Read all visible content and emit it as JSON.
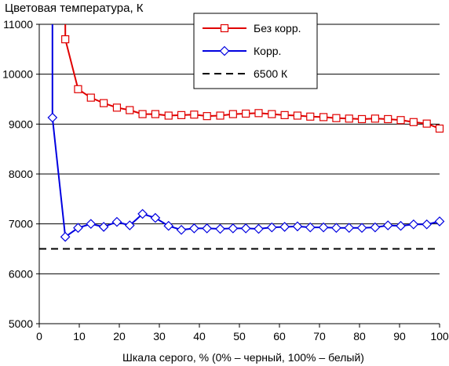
{
  "chart_data": {
    "type": "line",
    "title": "Цветовая температура, К",
    "xlabel": "Шкала серого, % (0% – черный, 100% – белый)",
    "ylabel": "",
    "xlim": [
      0,
      100
    ],
    "ylim": [
      5000,
      11000
    ],
    "x_ticks": [
      "0",
      "10",
      "20",
      "30",
      "40",
      "50",
      "60",
      "70",
      "80",
      "90",
      "100"
    ],
    "y_ticks": [
      "5000",
      "6000",
      "7000",
      "8000",
      "9000",
      "10000",
      "11000"
    ],
    "grid": "horizontal",
    "legend_position": "top-right",
    "series": [
      {
        "name": "Без корр.",
        "color": "#e00000",
        "marker": "square",
        "line_start": [
          6.5,
          11500
        ],
        "points": [
          [
            6.5,
            10700
          ],
          [
            9.7,
            9700
          ],
          [
            12.9,
            9530
          ],
          [
            16.1,
            9420
          ],
          [
            19.4,
            9330
          ],
          [
            22.6,
            9280
          ],
          [
            25.8,
            9200
          ],
          [
            29.0,
            9200
          ],
          [
            32.3,
            9170
          ],
          [
            35.5,
            9180
          ],
          [
            38.7,
            9190
          ],
          [
            41.9,
            9160
          ],
          [
            45.2,
            9170
          ],
          [
            48.4,
            9200
          ],
          [
            51.6,
            9210
          ],
          [
            54.8,
            9220
          ],
          [
            58.1,
            9200
          ],
          [
            61.3,
            9180
          ],
          [
            64.5,
            9170
          ],
          [
            67.7,
            9150
          ],
          [
            71.0,
            9140
          ],
          [
            74.2,
            9120
          ],
          [
            77.4,
            9110
          ],
          [
            80.6,
            9100
          ],
          [
            83.9,
            9110
          ],
          [
            87.1,
            9100
          ],
          [
            90.3,
            9080
          ],
          [
            93.5,
            9040
          ],
          [
            96.8,
            9010
          ],
          [
            100.0,
            8910
          ]
        ]
      },
      {
        "name": "Корр.",
        "color": "#0000e0",
        "marker": "diamond",
        "line_start": [
          3.3,
          11500
        ],
        "points": [
          [
            3.3,
            9130
          ],
          [
            6.5,
            6740
          ],
          [
            9.7,
            6920
          ],
          [
            12.9,
            7000
          ],
          [
            16.1,
            6940
          ],
          [
            19.4,
            7040
          ],
          [
            22.6,
            6970
          ],
          [
            25.8,
            7200
          ],
          [
            29.0,
            7120
          ],
          [
            32.3,
            6960
          ],
          [
            35.5,
            6880
          ],
          [
            38.7,
            6910
          ],
          [
            41.9,
            6910
          ],
          [
            45.2,
            6900
          ],
          [
            48.4,
            6910
          ],
          [
            51.6,
            6910
          ],
          [
            54.8,
            6900
          ],
          [
            58.1,
            6930
          ],
          [
            61.3,
            6940
          ],
          [
            64.5,
            6950
          ],
          [
            67.7,
            6930
          ],
          [
            71.0,
            6930
          ],
          [
            74.2,
            6920
          ],
          [
            77.4,
            6920
          ],
          [
            80.6,
            6920
          ],
          [
            83.9,
            6930
          ],
          [
            87.1,
            6970
          ],
          [
            90.3,
            6960
          ],
          [
            93.5,
            6990
          ],
          [
            96.8,
            6990
          ],
          [
            100.0,
            7050
          ]
        ]
      },
      {
        "name": "6500 К",
        "color": "#000000",
        "marker": "none",
        "dash": true,
        "points": [
          [
            0,
            6500
          ],
          [
            100,
            6500
          ]
        ]
      }
    ]
  }
}
